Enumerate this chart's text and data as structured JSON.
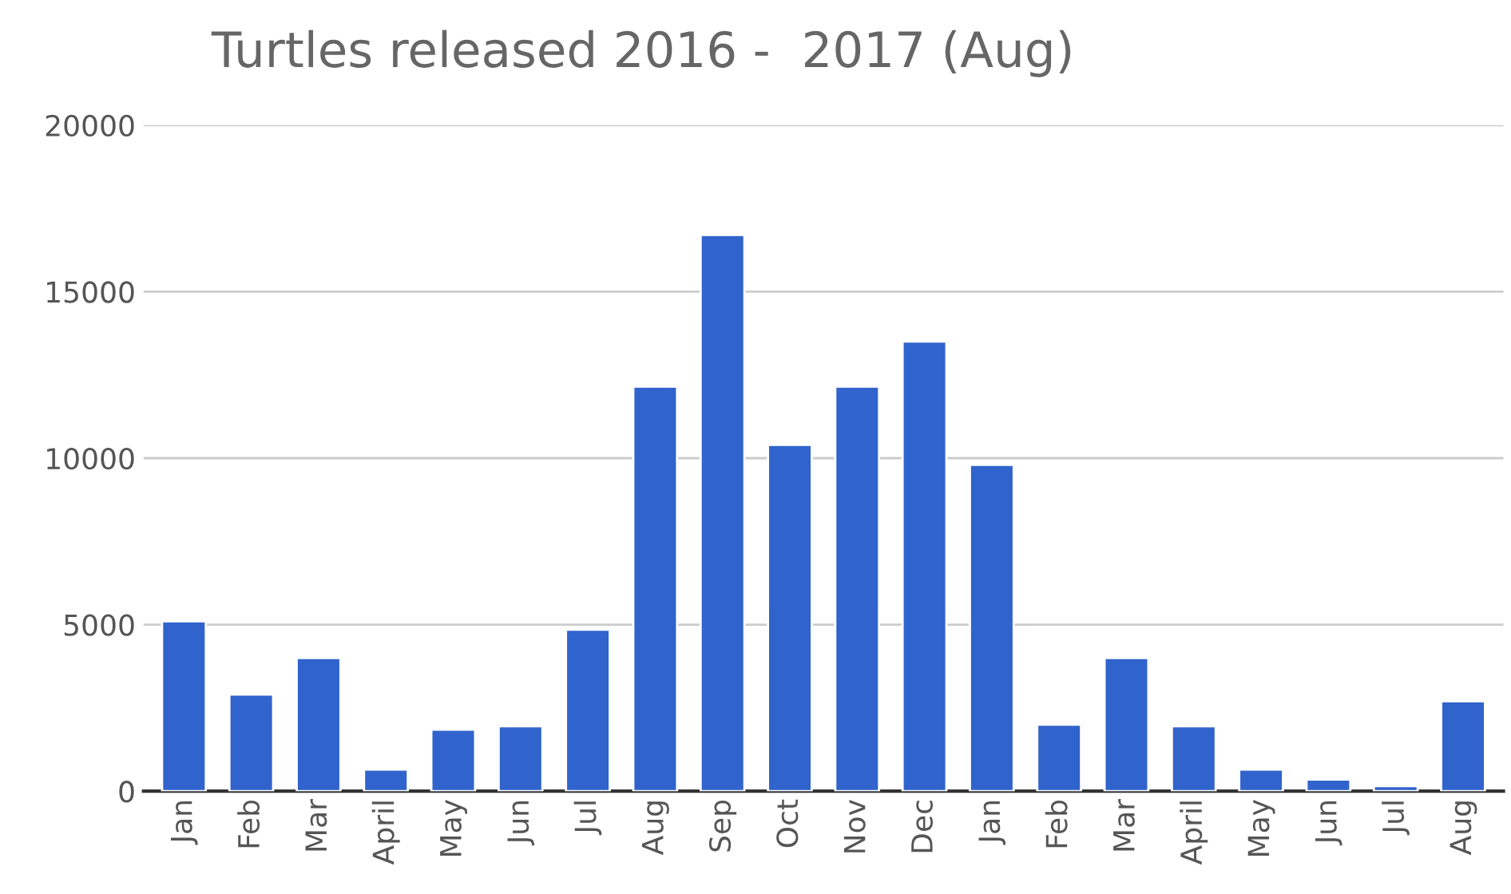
{
  "chart_data": {
    "type": "bar",
    "title": "Turtles released 2016 -  2017 (Aug)",
    "categories": [
      "Jan",
      "Feb",
      "Mar",
      "April",
      "May",
      "Jun",
      "Jul",
      "Aug",
      "Sep",
      "Oct",
      "Nov",
      "Dec",
      "Jan",
      "Feb",
      "Mar",
      "April",
      "May",
      "Jun",
      "Jul",
      "Aug"
    ],
    "values": [
      5100,
      2900,
      4000,
      650,
      1850,
      1950,
      4850,
      12150,
      16700,
      10400,
      12150,
      13500,
      9800,
      2000,
      4000,
      1950,
      650,
      350,
      150,
      2700
    ],
    "color": "#3063cc",
    "ylim": [
      0,
      20000
    ],
    "yticks": [
      0,
      5000,
      10000,
      15000,
      20000
    ],
    "grid": "y",
    "legend": false
  }
}
